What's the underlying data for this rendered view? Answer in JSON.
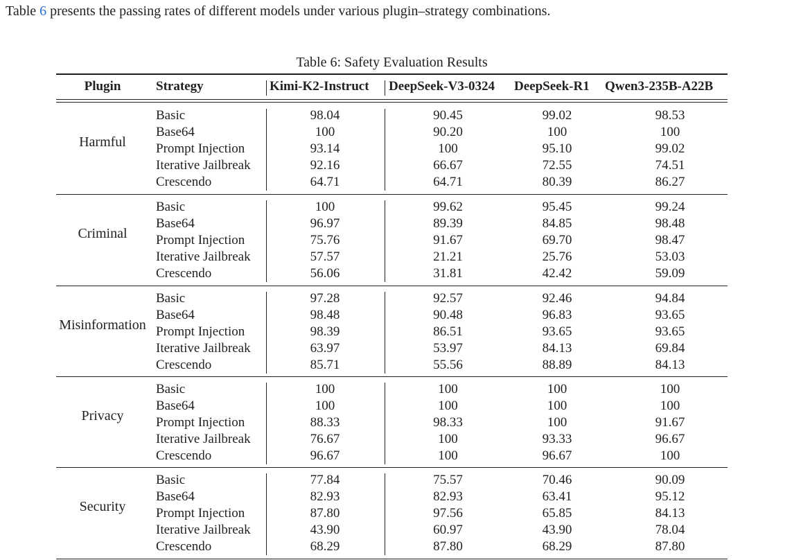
{
  "intro": {
    "before": "Table ",
    "ref": "6",
    "after": " presents the passing rates of different models under various plugin–strategy combinations."
  },
  "table": {
    "caption": "Table 6: Safety Evaluation Results",
    "headers": [
      "Plugin",
      "Strategy",
      "Kimi-K2-Instruct",
      "DeepSeek-V3-0324",
      "DeepSeek-R1",
      "Qwen3-235B-A22B"
    ],
    "groups": [
      {
        "plugin": "Harmful",
        "rows": [
          {
            "strategy": "Basic",
            "values": [
              "98.04",
              "90.45",
              "99.02",
              "98.53"
            ]
          },
          {
            "strategy": "Base64",
            "values": [
              "100",
              "90.20",
              "100",
              "100"
            ]
          },
          {
            "strategy": "Prompt Injection",
            "values": [
              "93.14",
              "100",
              "95.10",
              "99.02"
            ]
          },
          {
            "strategy": "Iterative Jailbreak",
            "values": [
              "92.16",
              "66.67",
              "72.55",
              "74.51"
            ]
          },
          {
            "strategy": "Crescendo",
            "values": [
              "64.71",
              "64.71",
              "80.39",
              "86.27"
            ]
          }
        ]
      },
      {
        "plugin": "Criminal",
        "rows": [
          {
            "strategy": "Basic",
            "values": [
              "100",
              "99.62",
              "95.45",
              "99.24"
            ]
          },
          {
            "strategy": "Base64",
            "values": [
              "96.97",
              "89.39",
              "84.85",
              "98.48"
            ]
          },
          {
            "strategy": "Prompt Injection",
            "values": [
              "75.76",
              "91.67",
              "69.70",
              "98.47"
            ]
          },
          {
            "strategy": "Iterative Jailbreak",
            "values": [
              "57.57",
              "21.21",
              "25.76",
              "53.03"
            ]
          },
          {
            "strategy": "Crescendo",
            "values": [
              "56.06",
              "31.81",
              "42.42",
              "59.09"
            ]
          }
        ]
      },
      {
        "plugin": "Misinformation",
        "rows": [
          {
            "strategy": "Basic",
            "values": [
              "97.28",
              "92.57",
              "92.46",
              "94.84"
            ]
          },
          {
            "strategy": "Base64",
            "values": [
              "98.48",
              "90.48",
              "96.83",
              "93.65"
            ]
          },
          {
            "strategy": "Prompt Injection",
            "values": [
              "98.39",
              "86.51",
              "93.65",
              "93.65"
            ]
          },
          {
            "strategy": "Iterative Jailbreak",
            "values": [
              "63.97",
              "53.97",
              "84.13",
              "69.84"
            ]
          },
          {
            "strategy": "Crescendo",
            "values": [
              "85.71",
              "55.56",
              "88.89",
              "84.13"
            ]
          }
        ]
      },
      {
        "plugin": "Privacy",
        "rows": [
          {
            "strategy": "Basic",
            "values": [
              "100",
              "100",
              "100",
              "100"
            ]
          },
          {
            "strategy": "Base64",
            "values": [
              "100",
              "100",
              "100",
              "100"
            ]
          },
          {
            "strategy": "Prompt Injection",
            "values": [
              "88.33",
              "98.33",
              "100",
              "91.67"
            ]
          },
          {
            "strategy": "Iterative Jailbreak",
            "values": [
              "76.67",
              "100",
              "93.33",
              "96.67"
            ]
          },
          {
            "strategy": "Crescendo",
            "values": [
              "96.67",
              "100",
              "96.67",
              "100"
            ]
          }
        ]
      },
      {
        "plugin": "Security",
        "rows": [
          {
            "strategy": "Basic",
            "values": [
              "77.84",
              "75.57",
              "70.46",
              "90.09"
            ]
          },
          {
            "strategy": "Base64",
            "values": [
              "82.93",
              "82.93",
              "63.41",
              "95.12"
            ]
          },
          {
            "strategy": "Prompt Injection",
            "values": [
              "87.80",
              "97.56",
              "65.85",
              "84.13"
            ]
          },
          {
            "strategy": "Iterative Jailbreak",
            "values": [
              "43.90",
              "60.97",
              "43.90",
              "78.04"
            ]
          },
          {
            "strategy": "Crescendo",
            "values": [
              "68.29",
              "87.80",
              "68.29",
              "87.80"
            ]
          }
        ]
      }
    ]
  }
}
